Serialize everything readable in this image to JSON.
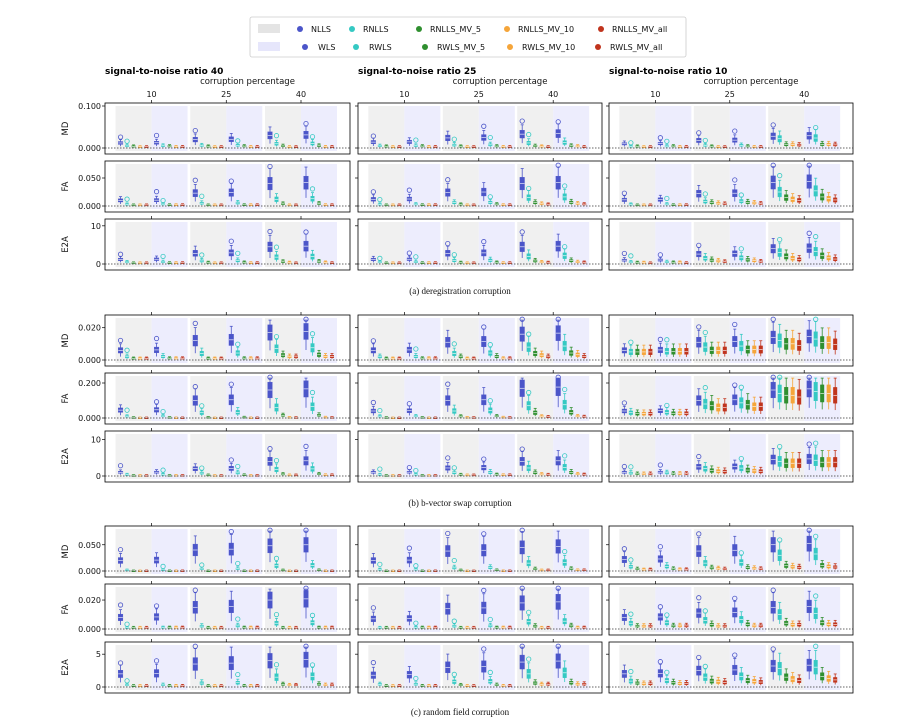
{
  "chart_data": {
    "type": "box",
    "legend": {
      "placement": "top-center",
      "rows": [
        {
          "style": "grey-band",
          "entries": [
            {
              "name": "NLLS",
              "color": "#4b55c9"
            },
            {
              "name": "RNLLS",
              "color": "#35c9c3"
            },
            {
              "name": "RNLLS_MV_5",
              "color": "#2f8f2f"
            },
            {
              "name": "RNLLS_MV_10",
              "color": "#f5a53a"
            },
            {
              "name": "RNLLS_MV_all",
              "color": "#c0341d"
            }
          ]
        },
        {
          "style": "lavender-band",
          "entries": [
            {
              "name": "WLS",
              "color": "#4b55c9"
            },
            {
              "name": "RWLS",
              "color": "#35c9c3"
            },
            {
              "name": "RWLS_MV_5",
              "color": "#2f8f2f"
            },
            {
              "name": "RWLS_MV_10",
              "color": "#f5a53a"
            },
            {
              "name": "RWLS_MV_all",
              "color": "#c0341d"
            }
          ]
        }
      ]
    },
    "columns": [
      {
        "title": "signal-to-noise ratio 40",
        "xlabel": "corruption percentage",
        "corruption_levels": [
          "10",
          "25",
          "40"
        ]
      },
      {
        "title": "signal-to-noise ratio 25",
        "xlabel": "corruption percentage",
        "corruption_levels": [
          "10",
          "25",
          "40"
        ]
      },
      {
        "title": "signal-to-noise ratio 10",
        "xlabel": "corruption percentage",
        "corruption_levels": [
          "10",
          "25",
          "40"
        ]
      }
    ],
    "panels": [
      {
        "caption": "(a) deregistration corruption",
        "rows": [
          {
            "metric": "MD",
            "ylim": [
              0,
              0.1
            ],
            "yticks": [
              0,
              0.1
            ],
            "ytick_labels": [
              "0.000",
              "0.100"
            ],
            "levels": [
              [
                [
                  0.012,
                  0.005,
                  0.004,
                  0.003,
                  0.003
                ],
                [
                  0.014,
                  0.005,
                  0.004,
                  0.003,
                  0.003
                ],
                [
                  0.01,
                  0.004,
                  0.004,
                  0.003,
                  0.003
                ]
              ],
              [
                [
                  0.02,
                  0.006,
                  0.004,
                  0.003,
                  0.003
                ],
                [
                  0.024,
                  0.007,
                  0.004,
                  0.003,
                  0.003
                ],
                [
                  0.018,
                  0.006,
                  0.004,
                  0.003,
                  0.003
                ]
              ],
              [
                [
                  0.03,
                  0.01,
                  0.005,
                  0.003,
                  0.003
                ],
                [
                  0.033,
                  0.012,
                  0.005,
                  0.004,
                  0.003
                ],
                [
                  0.028,
                  0.022,
                  0.008,
                  0.008,
                  0.007
                ]
              ]
            ]
          },
          {
            "metric": "FA",
            "ylim": [
              0,
              0.075
            ],
            "yticks": [
              0,
              0.05
            ],
            "ytick_labels": [
              "0.000",
              "0.050"
            ],
            "levels": [
              [
                [
                  0.01,
                  0.003,
                  0.002,
                  0.002,
                  0.002
                ],
                [
                  0.012,
                  0.003,
                  0.002,
                  0.002,
                  0.002
                ],
                [
                  0.011,
                  0.003,
                  0.002,
                  0.002,
                  0.002
                ]
              ],
              [
                [
                  0.023,
                  0.005,
                  0.002,
                  0.002,
                  0.002
                ],
                [
                  0.024,
                  0.006,
                  0.003,
                  0.002,
                  0.002
                ],
                [
                  0.022,
                  0.008,
                  0.006,
                  0.005,
                  0.004
                ]
              ],
              [
                [
                  0.04,
                  0.012,
                  0.004,
                  0.002,
                  0.002
                ],
                [
                  0.04,
                  0.015,
                  0.006,
                  0.004,
                  0.003
                ],
                [
                  0.042,
                  0.025,
                  0.015,
                  0.012,
                  0.01
                ]
              ]
            ]
          },
          {
            "metric": "E2A",
            "ylim": [
              0,
              11
            ],
            "yticks": [
              0,
              10
            ],
            "ytick_labels": [
              "0",
              "10"
            ],
            "levels": [
              [
                [
                  1.2,
                  0.5,
                  0.3,
                  0.3,
                  0.3
                ],
                [
                  1.2,
                  0.5,
                  0.3,
                  0.3,
                  0.3
                ],
                [
                  1.0,
                  0.5,
                  0.4,
                  0.4,
                  0.3
                ]
              ],
              [
                [
                  2.8,
                  0.8,
                  0.4,
                  0.3,
                  0.3
                ],
                [
                  2.8,
                  0.9,
                  0.4,
                  0.3,
                  0.3
                ],
                [
                  2.6,
                  1.5,
                  1.0,
                  0.8,
                  0.6
                ]
              ],
              [
                [
                  4.5,
                  1.8,
                  0.6,
                  0.4,
                  0.3
                ],
                [
                  4.5,
                  2.0,
                  0.8,
                  0.5,
                  0.4
                ],
                [
                  4.0,
                  3.0,
                  2.0,
                  1.5,
                  1.2
                ]
              ]
            ]
          }
        ]
      },
      {
        "caption": "(b) b-vector swap corruption",
        "rows": [
          {
            "metric": "MD",
            "ylim": [
              0,
              0.026
            ],
            "yticks": [
              0,
              0.02
            ],
            "ytick_labels": [
              "0.000",
              "0.020"
            ],
            "levels": [
              [
                [
                  0.006,
                  0.002,
                  0.001,
                  0.001,
                  0.001
                ],
                [
                  0.006,
                  0.002,
                  0.001,
                  0.001,
                  0.001
                ],
                [
                  0.006,
                  0.005,
                  0.005,
                  0.005,
                  0.005
                ]
              ],
              [
                [
                  0.012,
                  0.004,
                  0.001,
                  0.001,
                  0.001
                ],
                [
                  0.011,
                  0.004,
                  0.002,
                  0.001,
                  0.001
                ],
                [
                  0.011,
                  0.008,
                  0.006,
                  0.006,
                  0.006
                ]
              ],
              [
                [
                  0.017,
                  0.007,
                  0.003,
                  0.002,
                  0.002
                ],
                [
                  0.016,
                  0.008,
                  0.004,
                  0.003,
                  0.002
                ],
                [
                  0.014,
                  0.012,
                  0.01,
                  0.01,
                  0.009
                ]
              ]
            ]
          },
          {
            "metric": "FA",
            "ylim": [
              0,
              0.24
            ],
            "yticks": [
              0,
              0.2
            ],
            "ytick_labels": [
              "0.000",
              "0.200"
            ],
            "levels": [
              [
                [
                  0.045,
                  0.01,
                  0.004,
                  0.003,
                  0.003
                ],
                [
                  0.04,
                  0.01,
                  0.004,
                  0.003,
                  0.003
                ],
                [
                  0.04,
                  0.03,
                  0.025,
                  0.025,
                  0.025
                ]
              ],
              [
                [
                  0.1,
                  0.03,
                  0.005,
                  0.003,
                  0.003
                ],
                [
                  0.1,
                  0.04,
                  0.01,
                  0.005,
                  0.004
                ],
                [
                  0.1,
                  0.08,
                  0.07,
                  0.06,
                  0.06
                ]
              ],
              [
                [
                  0.16,
                  0.06,
                  0.015,
                  0.005,
                  0.004
                ],
                [
                  0.17,
                  0.07,
                  0.03,
                  0.01,
                  0.008
                ],
                [
                  0.16,
                  0.14,
                  0.13,
                  0.13,
                  0.12
                ]
              ]
            ]
          },
          {
            "metric": "E2A",
            "ylim": [
              0,
              11.5
            ],
            "yticks": [
              0,
              10
            ],
            "ytick_labels": [
              "0",
              "10"
            ],
            "levels": [
              [
                [
                  1.0,
                  0.4,
                  0.2,
                  0.2,
                  0.2
                ],
                [
                  1.0,
                  0.4,
                  0.2,
                  0.2,
                  0.2
                ],
                [
                  1.0,
                  0.8,
                  0.6,
                  0.6,
                  0.6
                ]
              ],
              [
                [
                  2.0,
                  0.8,
                  0.3,
                  0.2,
                  0.2
                ],
                [
                  2.2,
                  0.9,
                  0.4,
                  0.3,
                  0.3
                ],
                [
                  2.5,
                  2.0,
                  1.5,
                  1.3,
                  1.2
                ]
              ],
              [
                [
                  4.0,
                  1.8,
                  0.5,
                  0.3,
                  0.3
                ],
                [
                  4.0,
                  2.2,
                  0.9,
                  0.5,
                  0.4
                ],
                [
                  4.5,
                  4.0,
                  3.5,
                  3.5,
                  3.5
                ]
              ]
            ]
          }
        ]
      },
      {
        "caption": "(c) random field corruption",
        "rows": [
          {
            "metric": "MD",
            "ylim": [
              0,
              0.08
            ],
            "yticks": [
              0,
              0.05
            ],
            "ytick_labels": [
              "0.000",
              "0.050"
            ],
            "levels": [
              [
                [
                  0.02,
                  0.002,
                  0.001,
                  0.001,
                  0.001
                ],
                [
                  0.02,
                  0.003,
                  0.001,
                  0.001,
                  0.001
                ],
                [
                  0.022,
                  0.008,
                  0.004,
                  0.003,
                  0.003
                ]
              ],
              [
                [
                  0.04,
                  0.004,
                  0.001,
                  0.001,
                  0.001
                ],
                [
                  0.038,
                  0.006,
                  0.002,
                  0.001,
                  0.001
                ],
                [
                  0.038,
                  0.015,
                  0.006,
                  0.005,
                  0.004
                ]
              ],
              [
                [
                  0.048,
                  0.01,
                  0.002,
                  0.001,
                  0.001
                ],
                [
                  0.045,
                  0.015,
                  0.004,
                  0.002,
                  0.002
                ],
                [
                  0.05,
                  0.03,
                  0.01,
                  0.008,
                  0.007
                ]
              ]
            ]
          },
          {
            "metric": "FA",
            "ylim": [
              0,
              0.029
            ],
            "yticks": [
              0,
              0.02
            ],
            "ytick_labels": [
              "0.000",
              "0.020"
            ],
            "levels": [
              [
                [
                  0.008,
                  0.001,
                  0.001,
                  0.001,
                  0.001
                ],
                [
                  0.007,
                  0.001,
                  0.001,
                  0.001,
                  0.001
                ],
                [
                  0.008,
                  0.004,
                  0.002,
                  0.002,
                  0.002
                ]
              ],
              [
                [
                  0.015,
                  0.002,
                  0.001,
                  0.001,
                  0.001
                ],
                [
                  0.014,
                  0.002,
                  0.001,
                  0.001,
                  0.001
                ],
                [
                  0.011,
                  0.006,
                  0.003,
                  0.002,
                  0.002
                ]
              ],
              [
                [
                  0.02,
                  0.004,
                  0.001,
                  0.001,
                  0.001
                ],
                [
                  0.018,
                  0.005,
                  0.002,
                  0.001,
                  0.001
                ],
                [
                  0.015,
                  0.01,
                  0.004,
                  0.003,
                  0.003
                ]
              ]
            ]
          },
          {
            "metric": "E2A",
            "ylim": [
              0,
              6.4
            ],
            "yticks": [
              0,
              5
            ],
            "ytick_labels": [
              "0",
              "5"
            ],
            "levels": [
              [
                [
                  2.0,
                  0.3,
                  0.2,
                  0.2,
                  0.2
                ],
                [
                  1.8,
                  0.4,
                  0.2,
                  0.2,
                  0.2
                ],
                [
                  2.0,
                  0.9,
                  0.6,
                  0.5,
                  0.5
                ]
              ],
              [
                [
                  3.5,
                  0.6,
                  0.2,
                  0.2,
                  0.2
                ],
                [
                  3.0,
                  0.8,
                  0.3,
                  0.2,
                  0.2
                ],
                [
                  2.5,
                  1.5,
                  0.9,
                  0.8,
                  0.7
                ]
              ],
              [
                [
                  4.0,
                  1.5,
                  0.4,
                  0.3,
                  0.3
                ],
                [
                  3.8,
                  2.0,
                  0.6,
                  0.4,
                  0.4
                ],
                [
                  3.2,
                  2.8,
                  1.5,
                  1.2,
                  1.0
                ]
              ]
            ]
          }
        ]
      }
    ]
  }
}
